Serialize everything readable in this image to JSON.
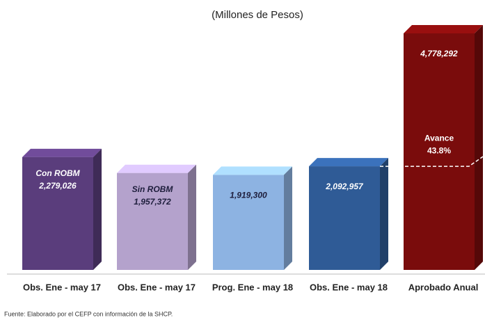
{
  "chart_data": {
    "type": "bar3d",
    "subtitle": "(Millones de Pesos)",
    "categories": [
      "Obs. Ene - may 17",
      "Obs. Ene - may 17",
      "Prog. Ene - may 18",
      "Obs. Ene - may 18",
      "Aprobado Anual"
    ],
    "values": [
      2279026,
      1957372,
      1919300,
      2092957,
      4778292
    ],
    "value_labels": [
      "2,279,026",
      "1,957,372",
      "1,919,300",
      "2,092,957",
      "4,778,292"
    ],
    "inner_labels": [
      "Con ROBM",
      "Sin ROBM",
      null,
      null,
      null
    ],
    "colors": [
      "#5a3d7c",
      "#b4a2cc",
      "#8db3e2",
      "#2f5b96",
      "#7a0c0c"
    ],
    "label_colors": [
      "#ffffff",
      "#1e1e3c",
      "#1e1e3c",
      "#ffffff",
      "#ffffff"
    ],
    "annotation": {
      "title": "Avance",
      "value": 43.8,
      "label": "43.8%"
    },
    "source": "Fuente: Elaborado por el CEFP con información de la SHCP."
  }
}
